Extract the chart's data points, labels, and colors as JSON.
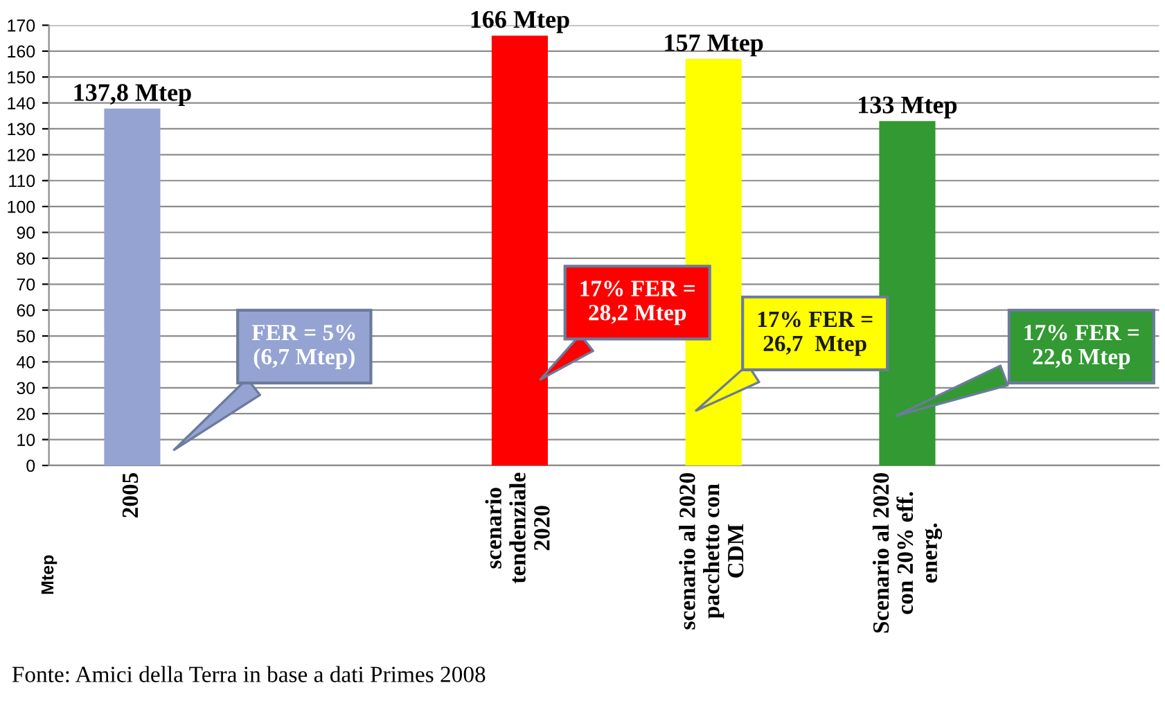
{
  "chart_data": {
    "type": "bar",
    "categories": [
      "2005",
      null,
      "scenario\ntendenziale\n2020",
      "scenario al 2020\npacchetto con\nCDM",
      "Scenario al 2020\ncon 20% eff.\nenerg."
    ],
    "values": [
      137.8,
      null,
      166,
      157,
      133
    ],
    "colors": [
      "#95a3d3",
      "#95a3d3",
      "#ff0000",
      "#ffff00",
      "#339933"
    ],
    "value_labels": [
      "137,8 Mtep",
      null,
      "166 Mtep",
      "157 Mtep",
      "133 Mtep"
    ],
    "ylabel": "Mtep",
    "ylim": [
      0,
      170
    ],
    "yticks": [
      0,
      10,
      20,
      30,
      40,
      50,
      60,
      70,
      80,
      90,
      100,
      110,
      120,
      130,
      140,
      150,
      160,
      170
    ],
    "grid": "y",
    "legend": false,
    "annotations": [
      "FER = 5%\n(6,7 Mtep)",
      "17% FER =\n28,2 Mtep",
      "17% FER =\n26,7  Mtep",
      "17% FER =\n22,6 Mtep",
      "Fonte: Amici della Terra in base a dati Primes 2008"
    ]
  }
}
